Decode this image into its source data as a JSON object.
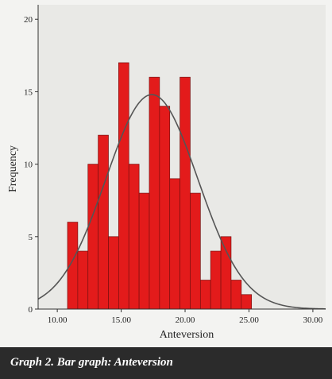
{
  "caption": "Graph 2. Bar graph: Anteversion",
  "colors": {
    "bar_fill": "#e31b1b",
    "bar_stroke": "#7a1010",
    "plot_bg": "#e9e9e6",
    "curve": "#555555",
    "caption_bg": "#2b2b2b"
  },
  "chart_data": {
    "type": "bar",
    "subtype": "histogram",
    "title": "",
    "xlabel": "Anteversion",
    "ylabel": "Frequency",
    "xlim": [
      8.5,
      31.0
    ],
    "ylim": [
      0,
      21
    ],
    "xticks": [
      "10.00",
      "15.00",
      "20.00",
      "25.00",
      "30.00"
    ],
    "xtick_values": [
      10,
      15,
      20,
      25,
      30
    ],
    "yticks": [
      "0",
      "5",
      "10",
      "15",
      "20"
    ],
    "ytick_values": [
      0,
      5,
      10,
      15,
      20
    ],
    "bin_edges": [
      10.8,
      11.6,
      12.4,
      13.2,
      14.0,
      14.8,
      15.6,
      16.4,
      17.2,
      18.0,
      18.8,
      19.6,
      20.4,
      21.2,
      22.0,
      22.8,
      23.6,
      24.4,
      25.2,
      26.0
    ],
    "values": [
      6,
      4,
      10,
      12,
      5,
      17,
      10,
      8,
      16,
      14,
      9,
      16,
      8,
      2,
      4,
      5,
      2,
      1,
      0
    ],
    "normal_curve": {
      "mean": 17.4,
      "sd": 3.6,
      "peak": 14.8
    },
    "grid": false,
    "legend": "none"
  }
}
